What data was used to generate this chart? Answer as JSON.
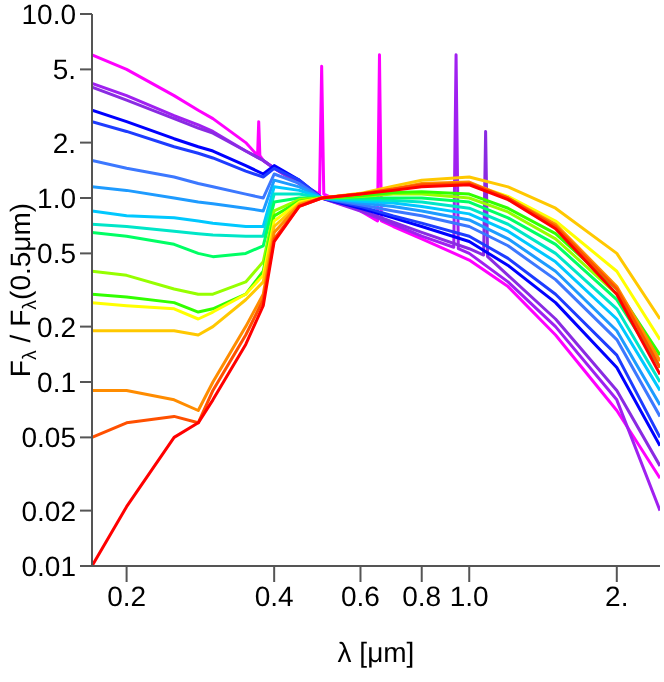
{
  "chart_data": {
    "type": "line",
    "xlabel": "λ [μm]",
    "ylabel": "F$_{λ}$ / F$_{λ}$(0.5μm)",
    "log": "xy",
    "grid": false,
    "marker": "none",
    "line_style": "solid",
    "xlim": [
      0.17,
      2.45
    ],
    "xticks": [
      0.2,
      0.4,
      0.6,
      0.8,
      {
        "value": 1.0,
        "label": "1.0"
      },
      {
        "value": 2,
        "label": "2."
      }
    ],
    "ylim": [
      0.01,
      10
    ],
    "yticks": [
      0.01,
      0.02,
      0.05,
      0.1,
      0.2,
      0.5,
      {
        "value": 1,
        "label": "1.0"
      },
      {
        "value": 2,
        "label": "2."
      },
      {
        "value": 5,
        "label": "5."
      },
      {
        "value": 10,
        "label": "10.0"
      }
    ],
    "x": [
      0.17,
      0.2,
      0.25,
      0.28,
      0.3,
      0.35,
      0.38,
      0.4,
      0.45,
      0.5,
      0.6,
      0.7,
      0.8,
      1.0,
      1.2,
      1.5,
      2.0,
      2.45
    ],
    "series": [
      {
        "color": "#ff00ff",
        "x": [
          0.17,
          0.2,
          0.25,
          0.28,
          0.3,
          0.35,
          0.37,
          0.372,
          0.374,
          0.38,
          0.4,
          0.45,
          0.495,
          0.5,
          0.505,
          0.55,
          0.6,
          0.65,
          0.656,
          0.662,
          0.7,
          0.8,
          1.0,
          1.2,
          1.5,
          2.0,
          2.45
        ],
        "values": [
          6.0,
          5.0,
          3.6,
          3.0,
          2.7,
          2.0,
          1.7,
          2.6,
          1.7,
          1.6,
          1.45,
          1.2,
          1.05,
          5.2,
          1.05,
          0.95,
          0.85,
          0.75,
          6.0,
          0.75,
          0.7,
          0.6,
          0.46,
          0.33,
          0.18,
          0.07,
          0.03
        ]
      },
      {
        "color": "#a020f0",
        "x": [
          0.17,
          0.2,
          0.25,
          0.28,
          0.3,
          0.35,
          0.38,
          0.4,
          0.45,
          0.5,
          0.6,
          0.7,
          0.8,
          0.93,
          0.94,
          0.95,
          1.0,
          1.2,
          1.5,
          2.0,
          2.45
        ],
        "values": [
          4.2,
          3.6,
          2.8,
          2.5,
          2.3,
          1.8,
          1.6,
          1.45,
          1.2,
          1.0,
          0.85,
          0.72,
          0.62,
          0.54,
          6.0,
          0.53,
          0.5,
          0.35,
          0.2,
          0.08,
          0.02
        ]
      },
      {
        "color": "#8a2be2",
        "x": [
          0.17,
          0.2,
          0.25,
          0.28,
          0.3,
          0.35,
          0.38,
          0.4,
          0.45,
          0.5,
          0.6,
          0.7,
          0.8,
          1.0,
          1.07,
          1.08,
          1.09,
          1.2,
          1.5,
          2.0,
          2.45
        ],
        "values": [
          4.0,
          3.4,
          2.7,
          2.4,
          2.25,
          1.8,
          1.6,
          1.45,
          1.2,
          1.0,
          0.86,
          0.74,
          0.65,
          0.53,
          0.49,
          2.3,
          0.48,
          0.38,
          0.22,
          0.09,
          0.035
        ]
      },
      {
        "color": "#0000ff",
        "values": [
          3.0,
          2.6,
          2.1,
          1.9,
          1.8,
          1.5,
          1.35,
          1.5,
          1.25,
          1.0,
          0.88,
          0.78,
          0.7,
          0.58,
          0.43,
          0.27,
          0.12,
          0.045
        ]
      },
      {
        "color": "#1e3cff",
        "values": [
          2.6,
          2.3,
          1.9,
          1.75,
          1.65,
          1.4,
          1.3,
          1.45,
          1.25,
          1.0,
          0.9,
          0.8,
          0.73,
          0.62,
          0.47,
          0.3,
          0.14,
          0.05
        ]
      },
      {
        "color": "#3c78ff",
        "values": [
          1.6,
          1.45,
          1.3,
          1.2,
          1.15,
          1.05,
          1.0,
          1.35,
          1.2,
          1.0,
          0.92,
          0.85,
          0.8,
          0.7,
          0.55,
          0.36,
          0.17,
          0.065
        ]
      },
      {
        "color": "#1e9bff",
        "values": [
          1.15,
          1.1,
          1.0,
          0.95,
          0.93,
          0.88,
          0.85,
          1.25,
          1.15,
          1.0,
          0.94,
          0.9,
          0.85,
          0.76,
          0.6,
          0.4,
          0.19,
          0.075
        ]
      },
      {
        "color": "#00c8ff",
        "values": [
          0.85,
          0.8,
          0.78,
          0.75,
          0.73,
          0.7,
          0.7,
          1.15,
          1.1,
          1.0,
          0.96,
          0.94,
          0.9,
          0.82,
          0.66,
          0.45,
          0.22,
          0.09
        ]
      },
      {
        "color": "#00e6c8",
        "values": [
          0.72,
          0.7,
          0.66,
          0.64,
          0.63,
          0.62,
          0.62,
          1.05,
          1.05,
          1.0,
          0.98,
          0.97,
          0.95,
          0.88,
          0.72,
          0.5,
          0.25,
          0.1
        ]
      },
      {
        "color": "#00ff64",
        "values": [
          0.65,
          0.62,
          0.56,
          0.5,
          0.48,
          0.5,
          0.55,
          0.95,
          1.0,
          1.0,
          1.0,
          1.0,
          1.0,
          0.95,
          0.78,
          0.56,
          0.28,
          0.12
        ]
      },
      {
        "color": "#96ff00",
        "values": [
          0.4,
          0.38,
          0.32,
          0.3,
          0.3,
          0.35,
          0.45,
          0.85,
          0.98,
          1.0,
          1.02,
          1.05,
          1.05,
          1.0,
          0.84,
          0.6,
          0.3,
          0.13
        ]
      },
      {
        "color": "#32ff00",
        "values": [
          0.3,
          0.29,
          0.27,
          0.24,
          0.25,
          0.3,
          0.4,
          0.8,
          0.96,
          1.0,
          1.03,
          1.07,
          1.08,
          1.05,
          0.88,
          0.64,
          0.32,
          0.14
        ]
      },
      {
        "color": "#ffff00",
        "values": [
          0.27,
          0.26,
          0.25,
          0.22,
          0.24,
          0.3,
          0.38,
          0.75,
          0.95,
          1.0,
          1.05,
          1.12,
          1.18,
          1.2,
          1.02,
          0.75,
          0.4,
          0.17
        ]
      },
      {
        "color": "#ffc800",
        "values": [
          0.19,
          0.19,
          0.19,
          0.18,
          0.2,
          0.28,
          0.35,
          0.7,
          0.93,
          1.0,
          1.06,
          1.16,
          1.25,
          1.3,
          1.15,
          0.88,
          0.5,
          0.22
        ]
      },
      {
        "color": "#ff8c00",
        "values": [
          0.09,
          0.09,
          0.08,
          0.07,
          0.1,
          0.2,
          0.3,
          0.65,
          0.92,
          1.0,
          1.05,
          1.12,
          1.2,
          1.22,
          1.0,
          0.72,
          0.33,
          0.13
        ]
      },
      {
        "color": "#ff5000",
        "values": [
          0.05,
          0.06,
          0.065,
          0.06,
          0.09,
          0.18,
          0.28,
          0.6,
          0.9,
          1.0,
          1.05,
          1.12,
          1.18,
          1.2,
          1.0,
          0.7,
          0.32,
          0.12
        ]
      },
      {
        "color": "#ff0000",
        "values": [
          0.01,
          0.021,
          0.05,
          0.06,
          0.08,
          0.16,
          0.26,
          0.58,
          0.9,
          1.0,
          1.05,
          1.1,
          1.15,
          1.18,
          0.98,
          0.68,
          0.3,
          0.11
        ]
      }
    ]
  }
}
